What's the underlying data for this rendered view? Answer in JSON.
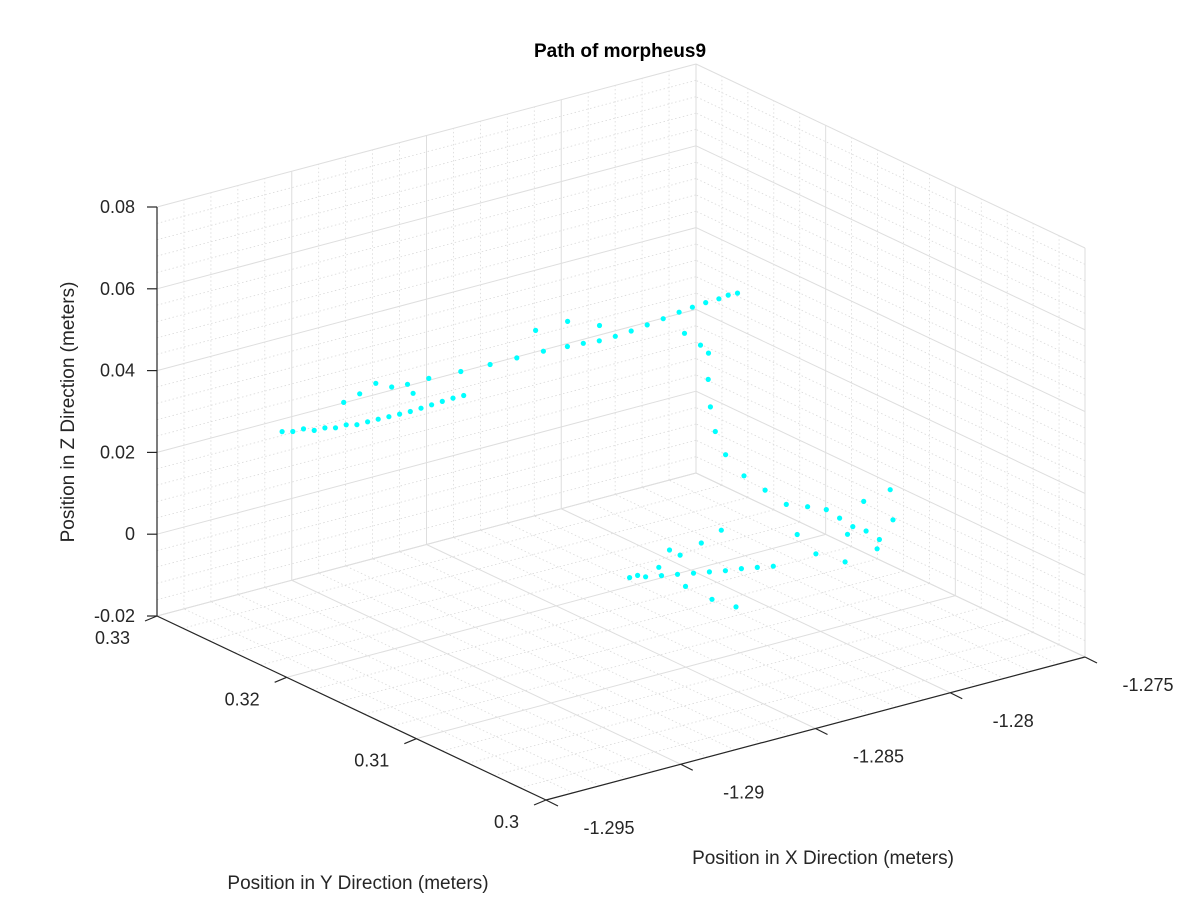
{
  "chart_data": {
    "type": "scatter",
    "title": "Path of morpheus9",
    "xlabel": "Position in X Direction (meters)",
    "ylabel": "Position in Y Direction (meters)",
    "zlabel": "Position in Z Direction (meters)",
    "xlim": [
      -1.295,
      -1.275
    ],
    "ylim": [
      0.3,
      0.33
    ],
    "zlim": [
      -0.02,
      0.08
    ],
    "x_ticks": [
      "-1.295",
      "-1.29",
      "-1.285",
      "-1.28",
      "-1.275"
    ],
    "y_ticks": [
      "0.3",
      "0.31",
      "0.32",
      "0.33"
    ],
    "z_ticks": [
      "-0.02",
      "0",
      "0.02",
      "0.04",
      "0.06",
      "0.08"
    ],
    "grid": true,
    "marker_color": "#00ffff",
    "series_points_xyz": [
      [
        -1.2918,
        0.327,
        0.024
      ],
      [
        -1.2915,
        0.3268,
        0.0238
      ],
      [
        -1.2912,
        0.3266,
        0.0242
      ],
      [
        -1.2909,
        0.3264,
        0.0236
      ],
      [
        -1.2906,
        0.3262,
        0.024
      ],
      [
        -1.2903,
        0.326,
        0.0238
      ],
      [
        -1.29,
        0.3258,
        0.0243
      ],
      [
        -1.2897,
        0.3256,
        0.0241
      ],
      [
        -1.2894,
        0.3254,
        0.0246
      ],
      [
        -1.2891,
        0.3252,
        0.025
      ],
      [
        -1.2888,
        0.325,
        0.0254
      ],
      [
        -1.2885,
        0.3248,
        0.0258
      ],
      [
        -1.2882,
        0.3246,
        0.0262
      ],
      [
        -1.2879,
        0.3244,
        0.0268
      ],
      [
        -1.2876,
        0.3242,
        0.0274
      ],
      [
        -1.2873,
        0.324,
        0.028
      ],
      [
        -1.287,
        0.3238,
        0.0286
      ],
      [
        -1.2867,
        0.3236,
        0.029
      ],
      [
        -1.288,
        0.3248,
        0.03
      ],
      [
        -1.2886,
        0.3252,
        0.032
      ],
      [
        -1.289,
        0.3256,
        0.033
      ],
      [
        -1.2895,
        0.3258,
        0.031
      ],
      [
        -1.2899,
        0.3262,
        0.029
      ],
      [
        -1.2884,
        0.3244,
        0.0335
      ],
      [
        -1.2878,
        0.324,
        0.0345
      ],
      [
        -1.287,
        0.3232,
        0.036
      ],
      [
        -1.2862,
        0.3226,
        0.0372
      ],
      [
        -1.2855,
        0.322,
        0.0385
      ],
      [
        -1.2848,
        0.3214,
        0.0398
      ],
      [
        -1.2842,
        0.3208,
        0.0408
      ],
      [
        -1.2838,
        0.3204,
        0.0415
      ],
      [
        -1.2834,
        0.32,
        0.042
      ],
      [
        -1.283,
        0.3196,
        0.043
      ],
      [
        -1.2826,
        0.3192,
        0.0442
      ],
      [
        -1.2822,
        0.3188,
        0.0456
      ],
      [
        -1.2818,
        0.3184,
        0.047
      ],
      [
        -1.2814,
        0.318,
        0.0485
      ],
      [
        -1.2811,
        0.3176,
        0.0498
      ],
      [
        -1.2808,
        0.3172,
        0.051
      ],
      [
        -1.2805,
        0.3168,
        0.052
      ],
      [
        -1.2803,
        0.3165,
        0.053
      ],
      [
        -1.2801,
        0.3162,
        0.0536
      ],
      [
        -1.2848,
        0.322,
        0.044
      ],
      [
        -1.284,
        0.3212,
        0.046
      ],
      [
        -1.2832,
        0.3204,
        0.0448
      ],
      [
        -1.2812,
        0.318,
        0.043
      ],
      [
        -1.2808,
        0.3176,
        0.04
      ],
      [
        -1.2806,
        0.3174,
        0.038
      ],
      [
        -1.2809,
        0.3168,
        0.033
      ],
      [
        -1.2812,
        0.316,
        0.028
      ],
      [
        -1.2815,
        0.315,
        0.024
      ],
      [
        -1.2816,
        0.314,
        0.02
      ],
      [
        -1.2814,
        0.313,
        0.016
      ],
      [
        -1.281,
        0.3122,
        0.013
      ],
      [
        -1.2806,
        0.3114,
        0.01
      ],
      [
        -1.28,
        0.311,
        0.009
      ],
      [
        -1.2795,
        0.3106,
        0.008
      ],
      [
        -1.2792,
        0.3102,
        0.006
      ],
      [
        -1.2789,
        0.3098,
        0.004
      ],
      [
        -1.2786,
        0.3094,
        0.003
      ],
      [
        -1.2783,
        0.309,
        0.001
      ],
      [
        -1.279,
        0.31,
        0.002
      ],
      [
        -1.282,
        0.3135,
        0.003
      ],
      [
        -1.2825,
        0.314,
        0.0
      ],
      [
        -1.283,
        0.3146,
        -0.003
      ],
      [
        -1.2835,
        0.3152,
        -0.006
      ],
      [
        -1.284,
        0.3158,
        -0.008
      ],
      [
        -1.2842,
        0.316,
        -0.0085
      ],
      [
        -1.2838,
        0.3156,
        -0.0084
      ],
      [
        -1.2834,
        0.3152,
        -0.0082
      ],
      [
        -1.283,
        0.3148,
        -0.008
      ],
      [
        -1.2826,
        0.3144,
        -0.0078
      ],
      [
        -1.2822,
        0.314,
        -0.0076
      ],
      [
        -1.2818,
        0.3136,
        -0.0074
      ],
      [
        -1.2814,
        0.3132,
        -0.007
      ],
      [
        -1.281,
        0.3128,
        -0.0068
      ],
      [
        -1.2806,
        0.3124,
        -0.0066
      ],
      [
        -1.2832,
        0.315,
        -0.002
      ],
      [
        -1.2828,
        0.3146,
        -0.011
      ],
      [
        -1.2822,
        0.3138,
        -0.014
      ],
      [
        -1.2816,
        0.3132,
        -0.016
      ],
      [
        -1.28,
        0.3118,
        0.001
      ],
      [
        -1.2795,
        0.3114,
        -0.004
      ],
      [
        -1.2788,
        0.3106,
        -0.006
      ],
      [
        -1.278,
        0.3098,
        -0.003
      ],
      [
        -1.2776,
        0.3094,
        0.004
      ],
      [
        -1.2784,
        0.31,
        0.009
      ],
      [
        -1.2778,
        0.3092,
        0.012
      ]
    ]
  }
}
